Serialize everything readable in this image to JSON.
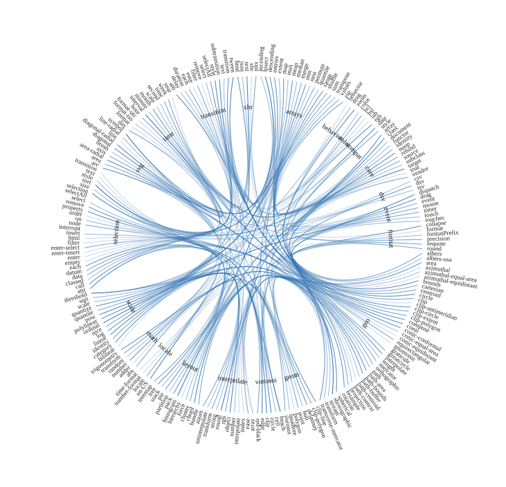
{
  "groups": [
    {
      "name": "arrays",
      "children": [
        "ascending",
        "bisect",
        "descending",
        "entries",
        "extent",
        "map",
        "max",
        "mean",
        "median",
        "merge",
        "min",
        "nest",
        "permute",
        "quantile",
        "range",
        "shuffle",
        "sum",
        "transpose",
        "values",
        "zip"
      ]
    },
    {
      "name": "behavior",
      "children": [
        "behavior",
        "drag",
        "zoom"
      ]
    },
    {
      "name": "color",
      "children": [
        "color",
        "hcl",
        "hsl",
        "lab",
        "rgb"
      ]
    },
    {
      "name": "compat",
      "children": [
        "date",
        "style"
      ]
    },
    {
      "name": "core",
      "children": [
        "array",
        "class",
        "document",
        "functor",
        "identity",
        "noop",
        "rebind",
        "source",
        "subclass",
        "target",
        "true",
        "vendor"
      ]
    },
    {
      "name": "dsv",
      "children": [
        "csv",
        "dsv",
        "tsv"
      ]
    },
    {
      "name": "event",
      "children": [
        "dispatch",
        "drag",
        "event",
        "mouse",
        "timer",
        "touch",
        "touches"
      ]
    },
    {
      "name": "format",
      "children": [
        "collapse",
        "format",
        "formatPrefix",
        "precision",
        "requote",
        "round"
      ]
    },
    {
      "name": "geo",
      "children": [
        "albers",
        "albers-usa",
        "area",
        "azimuthal",
        "azimuthal-equal-area",
        "azimuthal-equidistant",
        "bounds",
        "cartesian",
        "centroid",
        "circle",
        "clip",
        "clip-antimeridian",
        "clip-circle",
        "clip-extent",
        "clip-polygon",
        "compose",
        "conic",
        "conic-conformal",
        "conic-equal-area",
        "conic-equidistant",
        "equirectangular",
        "gnomonic",
        "graticule",
        "greatcircle",
        "interpolate",
        "length",
        "mercator",
        "orthographic",
        "path",
        "path-area",
        "path-bounds",
        "path-buffer",
        "path-centroid",
        "path-context",
        "projection",
        "resample",
        "rotation",
        "spherical",
        "stereographic",
        "stream",
        "transform",
        "transverse-mercator"
      ]
    },
    {
      "name": "geom",
      "children": [
        "clip-line",
        "clip-polygon",
        "delaunay",
        "hull",
        "point",
        "polygon",
        "quadtree",
        "voronoi"
      ]
    },
    {
      "name": "voronoi",
      "children": [
        "beach",
        "cell",
        "circle",
        "clip",
        "edge",
        "red-black"
      ]
    },
    {
      "name": "interpolate",
      "children": [
        "array",
        "ease",
        "index",
        "interpolate",
        "number",
        "object",
        "rgb",
        "round",
        "string",
        "transform",
        "uninterpolate",
        "zoom"
      ]
    },
    {
      "name": "layout",
      "children": [
        "bundle",
        "chord",
        "cluster",
        "force",
        "hierarchy",
        "histogram",
        "pack",
        "partition",
        "pie",
        "stack",
        "tree",
        "treemap"
      ]
    },
    {
      "name": "locale",
      "children": [
        "en-US",
        "locale",
        "number-format",
        "time-format"
      ]
    },
    {
      "name": "math",
      "children": [
        "abs",
        "adder",
        "number",
        "random",
        "transform",
        "trigonometry"
      ]
    },
    {
      "name": "scale",
      "children": [
        "bilinear",
        "category",
        "identity",
        "linear",
        "log",
        "nice",
        "ordinal",
        "polylinear",
        "pow",
        "quantile",
        "quantize",
        "scale",
        "sqrt",
        "threshold"
      ]
    },
    {
      "name": "selection",
      "children": [
        "attr",
        "call",
        "classed",
        "data",
        "datum",
        "each",
        "empty",
        "enter",
        "enter-insert",
        "enter-select",
        "filter",
        "html",
        "insert",
        "interrupt",
        "node",
        "on",
        "order",
        "property",
        "remove",
        "select",
        "selectAll",
        "selection",
        "size",
        "sort",
        "style",
        "text",
        "transition"
      ]
    },
    {
      "name": "svg",
      "children": [
        "arc",
        "area",
        "area-radial",
        "axis",
        "brush",
        "diagonal",
        "diagonal-radial",
        "line",
        "line-radial",
        "symbol"
      ]
    },
    {
      "name": "time",
      "children": [
        "day",
        "format",
        "format-iso",
        "format-utc",
        "hour",
        "interval",
        "minute",
        "month",
        "scale",
        "second",
        "time",
        "week",
        "year"
      ]
    },
    {
      "name": "transition",
      "children": [
        "attr",
        "delay",
        "duration",
        "each",
        "ease",
        "filter",
        "remove",
        "select",
        "selectAll",
        "style",
        "subtransition",
        "text",
        "transition",
        "tween"
      ]
    },
    {
      "name": "xhr",
      "children": [
        "html",
        "json",
        "text",
        "xhr",
        "xml"
      ]
    }
  ]
}
